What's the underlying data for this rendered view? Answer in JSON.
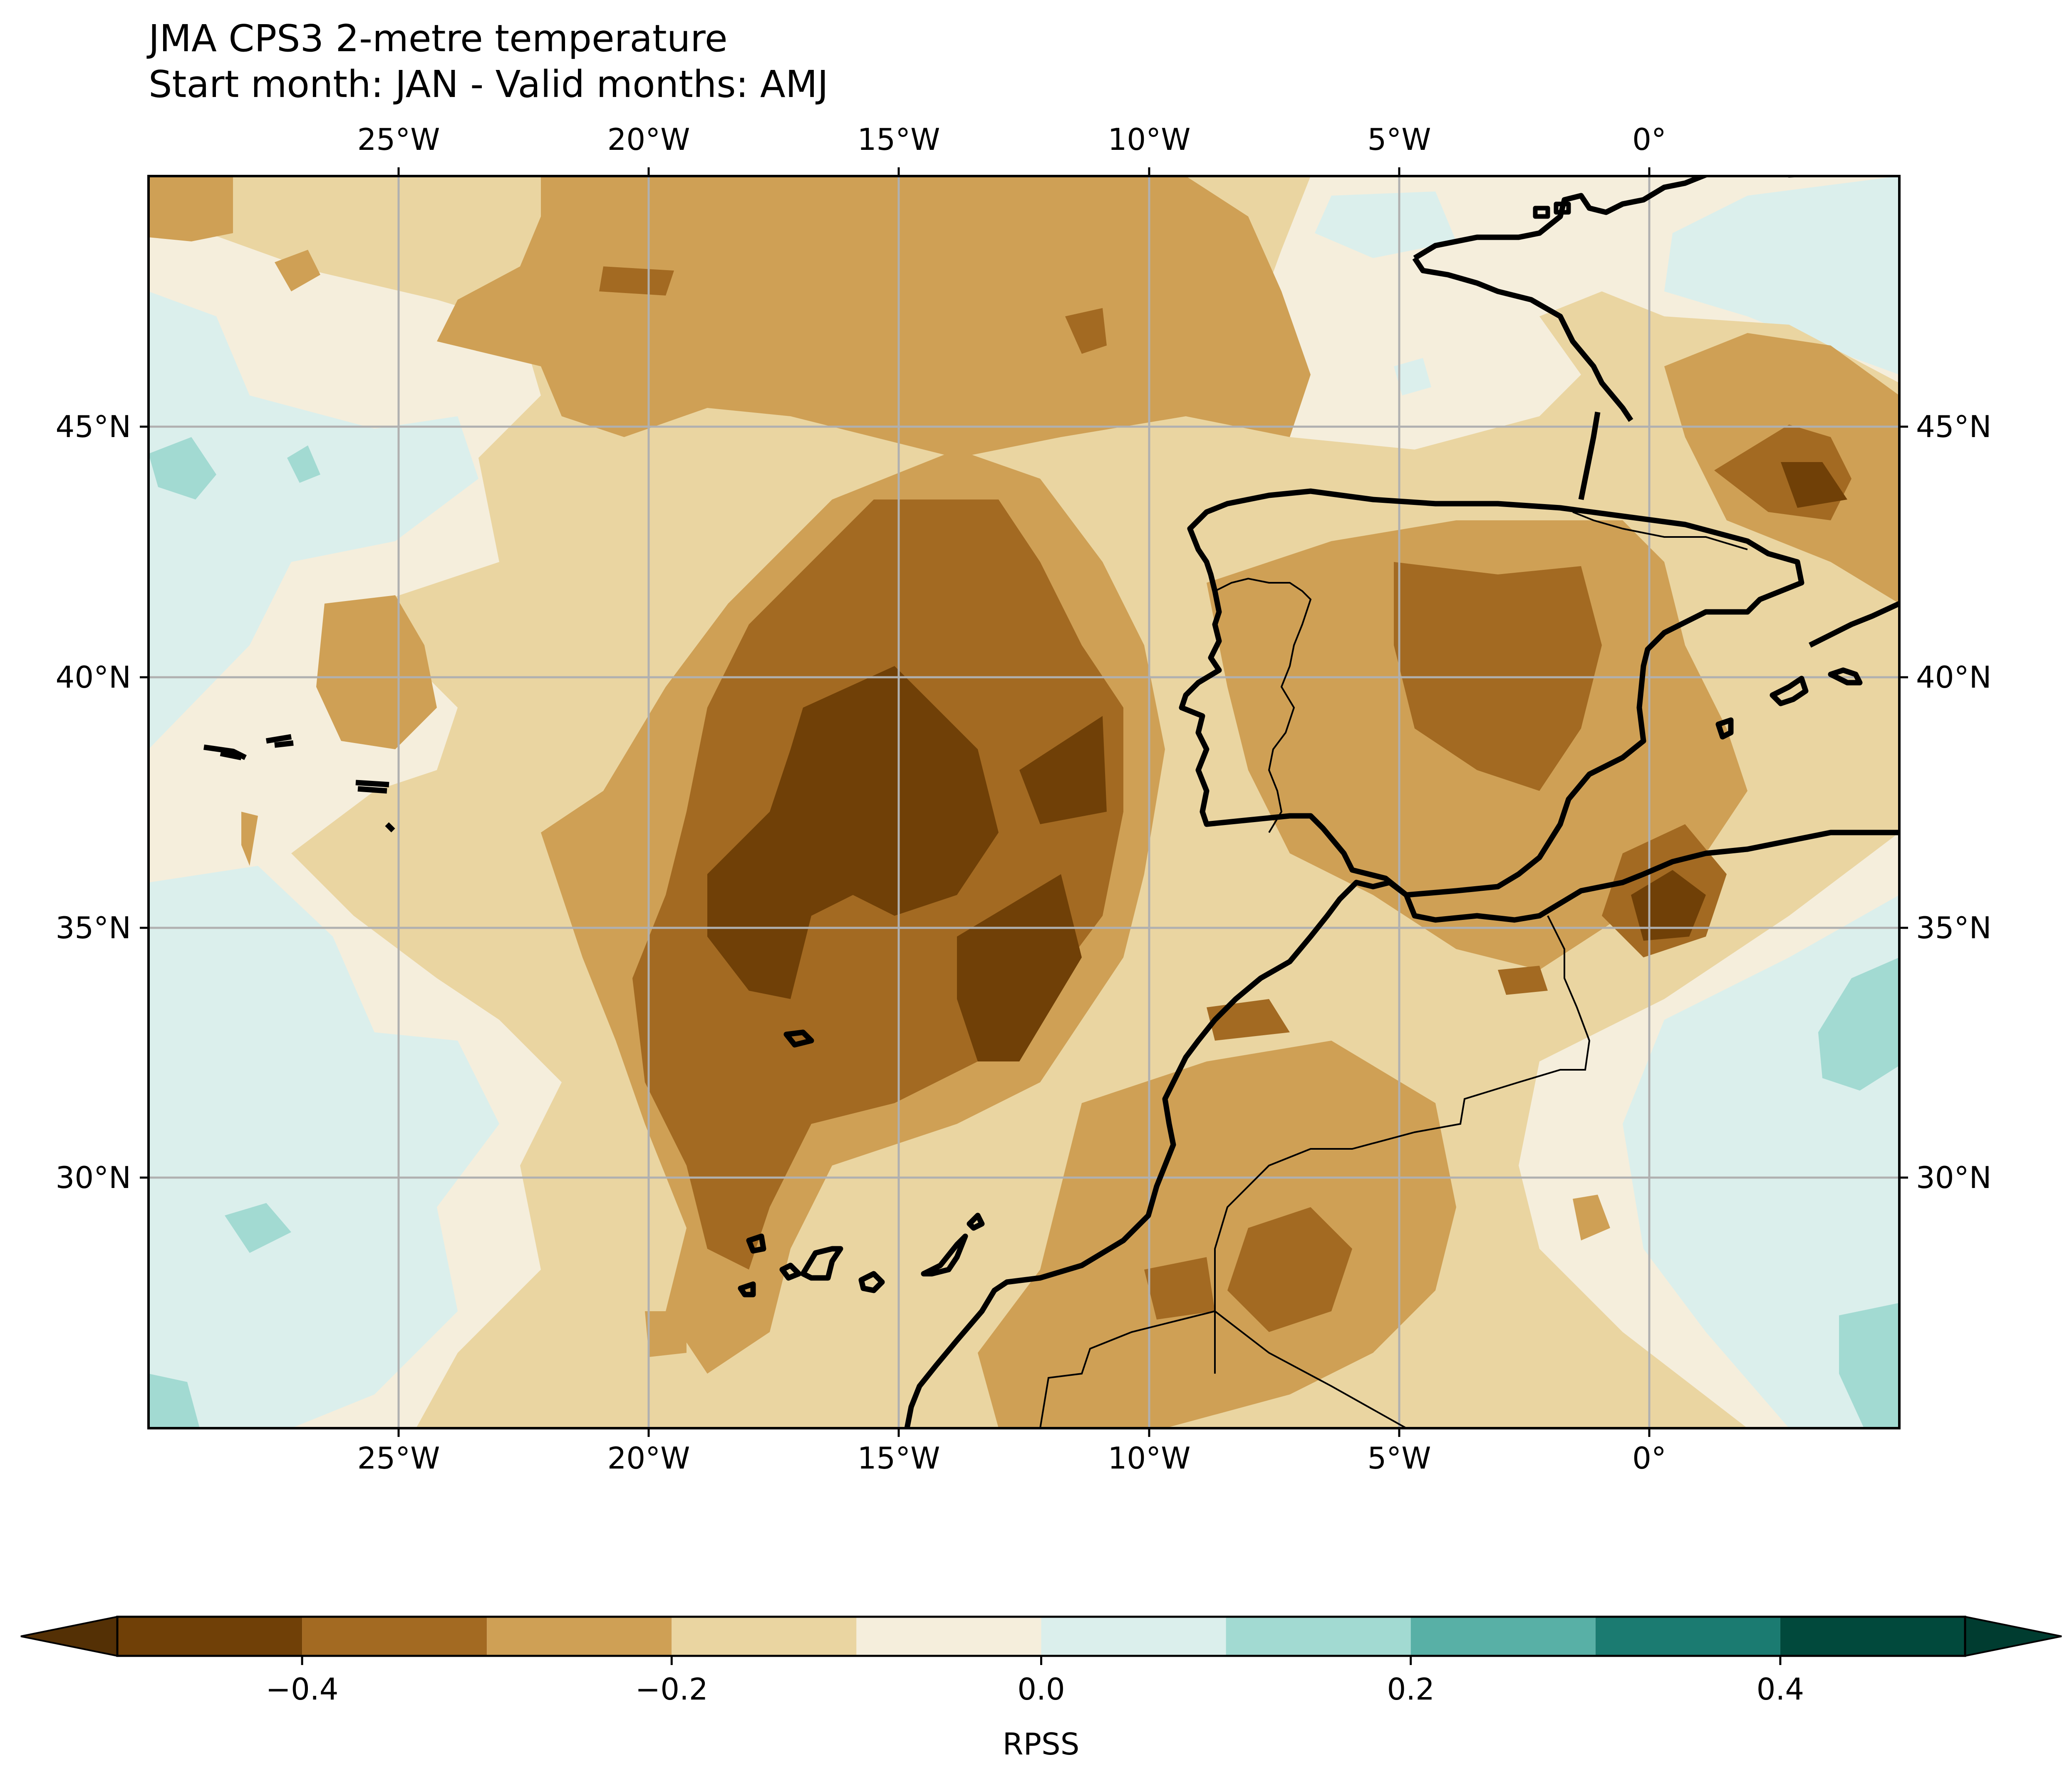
{
  "title": {
    "line1": "JMA CPS3 2-metre temperature",
    "line2": "Start month: JAN - Valid months: AMJ"
  },
  "map": {
    "projection": "PlateCarree",
    "lon_range": [
      -30,
      5
    ],
    "lat_range": [
      25,
      50
    ],
    "gridlines": true,
    "lon_ticks": [
      {
        "value": -25,
        "label": "25°W"
      },
      {
        "value": -20,
        "label": "20°W"
      },
      {
        "value": -15,
        "label": "15°W"
      },
      {
        "value": -10,
        "label": "10°W"
      },
      {
        "value": -5,
        "label": "5°W"
      },
      {
        "value": 0,
        "label": "0°"
      }
    ],
    "lat_ticks": [
      {
        "value": 45,
        "label": "45°N"
      },
      {
        "value": 40,
        "label": "40°N"
      },
      {
        "value": 35,
        "label": "35°N"
      },
      {
        "value": 30,
        "label": "30°N"
      }
    ],
    "field": "RPSS of 2-metre temperature",
    "dominant_pattern": "negative RPSS (brown) over central subtropical Atlantic west of Morocco and over Iberia; near-zero/slightly positive (teal) in the far west and far east edges"
  },
  "colorbar": {
    "label": "RPSS",
    "orientation": "horizontal",
    "extend": "both",
    "levels": [
      -0.5,
      -0.4,
      -0.3,
      -0.2,
      -0.1,
      0.0,
      0.1,
      0.2,
      0.3,
      0.4,
      0.5
    ],
    "colors": [
      "#704007",
      "#a36a22",
      "#cfa055",
      "#ead5a1",
      "#f5eedc",
      "#dbefec",
      "#a2dad2",
      "#58b0a6",
      "#1b7b71",
      "#01493c"
    ],
    "under_color": "#543005",
    "over_color": "#003c30",
    "ticks": [
      {
        "value": -0.4,
        "label": "−0.4"
      },
      {
        "value": -0.2,
        "label": "−0.2"
      },
      {
        "value": 0.0,
        "label": "0.0"
      },
      {
        "value": 0.2,
        "label": "0.2"
      },
      {
        "value": 0.4,
        "label": "0.4"
      }
    ]
  }
}
